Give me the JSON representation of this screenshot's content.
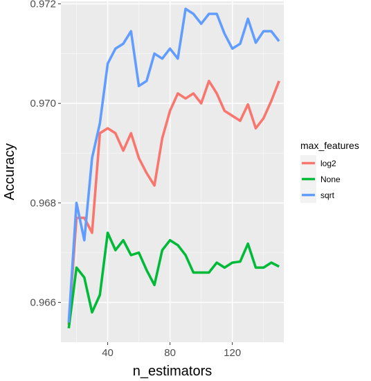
{
  "chart_data": {
    "type": "line",
    "xlabel": "n_estimators",
    "ylabel": "Accuracy",
    "xlim": [
      10,
      153
    ],
    "ylim": [
      0.9652,
      0.97205
    ],
    "x_ticks": [
      40,
      80,
      120
    ],
    "x_tick_labels": [
      "40",
      "80",
      "120"
    ],
    "y_ticks": [
      0.966,
      0.968,
      0.97,
      0.972
    ],
    "y_tick_labels": [
      "0.966",
      "0.968",
      "0.970",
      "0.972"
    ],
    "grid": true,
    "legend": {
      "title": "max_features",
      "position": "right"
    },
    "x": [
      15,
      20,
      25,
      30,
      35,
      40,
      45,
      50,
      55,
      60,
      65,
      70,
      75,
      80,
      85,
      90,
      95,
      100,
      105,
      110,
      115,
      120,
      125,
      130,
      135,
      140,
      145,
      150
    ],
    "series": [
      {
        "name": "log2",
        "color": "#F8766D",
        "values": [
          0.96555,
          0.9677,
          0.9677,
          0.9674,
          0.9694,
          0.9695,
          0.9694,
          0.96905,
          0.9694,
          0.9689,
          0.9686,
          0.96835,
          0.9693,
          0.96985,
          0.9702,
          0.9701,
          0.9702,
          0.97,
          0.97045,
          0.9702,
          0.96985,
          0.96975,
          0.96965,
          0.96998,
          0.9695,
          0.9697,
          0.97005,
          0.97045
        ]
      },
      {
        "name": "None",
        "color": "#00BA38",
        "values": [
          0.96548,
          0.9667,
          0.9665,
          0.9658,
          0.96615,
          0.9674,
          0.96705,
          0.96725,
          0.96695,
          0.967,
          0.96665,
          0.96635,
          0.96705,
          0.96725,
          0.96715,
          0.96695,
          0.9666,
          0.9666,
          0.9666,
          0.9668,
          0.9667,
          0.9668,
          0.96682,
          0.96718,
          0.9667,
          0.9667,
          0.9668,
          0.96672
        ]
      },
      {
        "name": "sqrt",
        "color": "#619CFF",
        "values": [
          0.9656,
          0.968,
          0.96725,
          0.9689,
          0.9696,
          0.9708,
          0.9711,
          0.9712,
          0.97145,
          0.97035,
          0.97045,
          0.971,
          0.9709,
          0.9711,
          0.9709,
          0.9719,
          0.9718,
          0.9716,
          0.9718,
          0.9718,
          0.9714,
          0.9711,
          0.9712,
          0.9717,
          0.97122,
          0.97145,
          0.97145,
          0.97125
        ]
      }
    ]
  }
}
